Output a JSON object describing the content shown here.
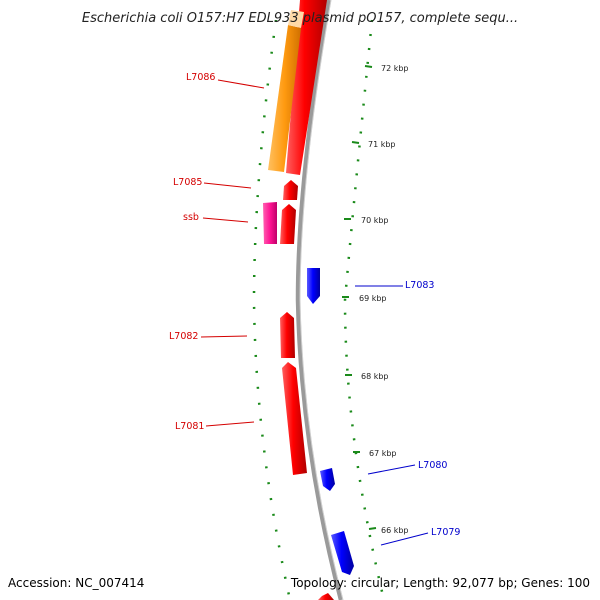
{
  "header": {
    "title": "Escherichia coli O157:H7 EDL933 plasmid pO157, complete sequ..."
  },
  "footer": {
    "accession": "Accession: NC_007414",
    "summary": "Topology: circular; Length: 92,077 bp; Genes: 100"
  },
  "scale": {
    "ticks": [
      {
        "label": "72 kbp",
        "kbp": 72
      },
      {
        "label": "71 kbp",
        "kbp": 71
      },
      {
        "label": "70 kbp",
        "kbp": 70
      },
      {
        "label": "69 kbp",
        "kbp": 69
      },
      {
        "label": "68 kbp",
        "kbp": 68
      },
      {
        "label": "67 kbp",
        "kbp": 67
      },
      {
        "label": "66 kbp",
        "kbp": 66
      }
    ]
  },
  "genes": [
    {
      "label": "L7086",
      "strand": "reverse",
      "color": "#d40000"
    },
    {
      "label": "L7085",
      "strand": "reverse",
      "color": "#d40000"
    },
    {
      "label": "ssb",
      "strand": "reverse",
      "color": "#d40000"
    },
    {
      "label": "L7083",
      "strand": "forward",
      "color": "#0000cc"
    },
    {
      "label": "L7082",
      "strand": "reverse",
      "color": "#d40000"
    },
    {
      "label": "L7081",
      "strand": "reverse",
      "color": "#d40000"
    },
    {
      "label": "L7080",
      "strand": "forward",
      "color": "#0000cc"
    },
    {
      "label": "L7079",
      "strand": "forward",
      "color": "#0000cc"
    }
  ],
  "colors": {
    "reverse_cds": "#ff0000",
    "forward_cds": "#0000ff",
    "orange_feature": "#ff8c00",
    "magenta_feature": "#ff1493",
    "backbone": "#888888",
    "tick_marks": "#1a8a1a"
  }
}
